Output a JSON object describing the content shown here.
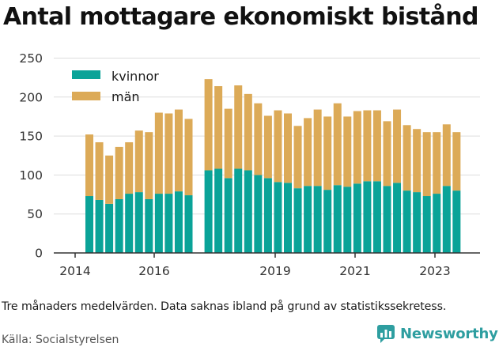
{
  "title": "Antal mottagare ekonomiskt bistånd",
  "note": "Tre månaders medelvärden. Data saknas ibland på grund av statistikssekretess.",
  "source": "Källa: Socialstyrelsen",
  "brand": "Newsworthy",
  "colors": {
    "kvinnor": "#0aa398",
    "man": "#dcaa57",
    "grid": "#dddddd",
    "brand": "#2e9ea0"
  },
  "chart_data": {
    "type": "bar",
    "stacked": true,
    "x_ticks": [
      "2014",
      "2016",
      "2019",
      "2021",
      "2023"
    ],
    "y_ticks": [
      0,
      50,
      100,
      150,
      200,
      250
    ],
    "ylim": [
      0,
      250
    ],
    "grid": "horizontal",
    "legend_position": "top-left",
    "categories": [
      "2014-Q2",
      "2014-Q3",
      "2014-Q4",
      "2015-Q1",
      "2015-Q2",
      "2015-Q3",
      "2015-Q4",
      "2016-Q1",
      "2016-Q2",
      "2016-Q3",
      "2016-Q4",
      "2017-Q1",
      "2017-Q2",
      "2017-Q3",
      "2017-Q4",
      "2018-Q1",
      "2018-Q2",
      "2018-Q3",
      "2018-Q4",
      "2019-Q1",
      "2019-Q2",
      "2019-Q3",
      "2019-Q4",
      "2020-Q1",
      "2020-Q2",
      "2020-Q3",
      "2020-Q4",
      "2021-Q1",
      "2021-Q2",
      "2021-Q3",
      "2021-Q4",
      "2022-Q1",
      "2022-Q2",
      "2022-Q3",
      "2022-Q4",
      "2023-Q1",
      "2023-Q2",
      "2023-Q3",
      "2023-Q4"
    ],
    "series": [
      {
        "name": "kvinnor",
        "values": [
          73,
          68,
          63,
          69,
          76,
          78,
          69,
          76,
          76,
          79,
          74,
          null,
          106,
          108,
          96,
          108,
          106,
          100,
          96,
          91,
          90,
          83,
          86,
          86,
          81,
          87,
          85,
          89,
          92,
          92,
          86,
          90,
          80,
          78,
          73,
          76,
          86,
          80,
          null
        ]
      },
      {
        "name": "män",
        "values": [
          79,
          74,
          62,
          67,
          66,
          79,
          86,
          104,
          103,
          105,
          98,
          null,
          117,
          106,
          89,
          107,
          98,
          92,
          80,
          92,
          89,
          80,
          87,
          98,
          94,
          105,
          90,
          93,
          91,
          91,
          83,
          94,
          84,
          81,
          82,
          79,
          79,
          75,
          null
        ]
      }
    ]
  }
}
